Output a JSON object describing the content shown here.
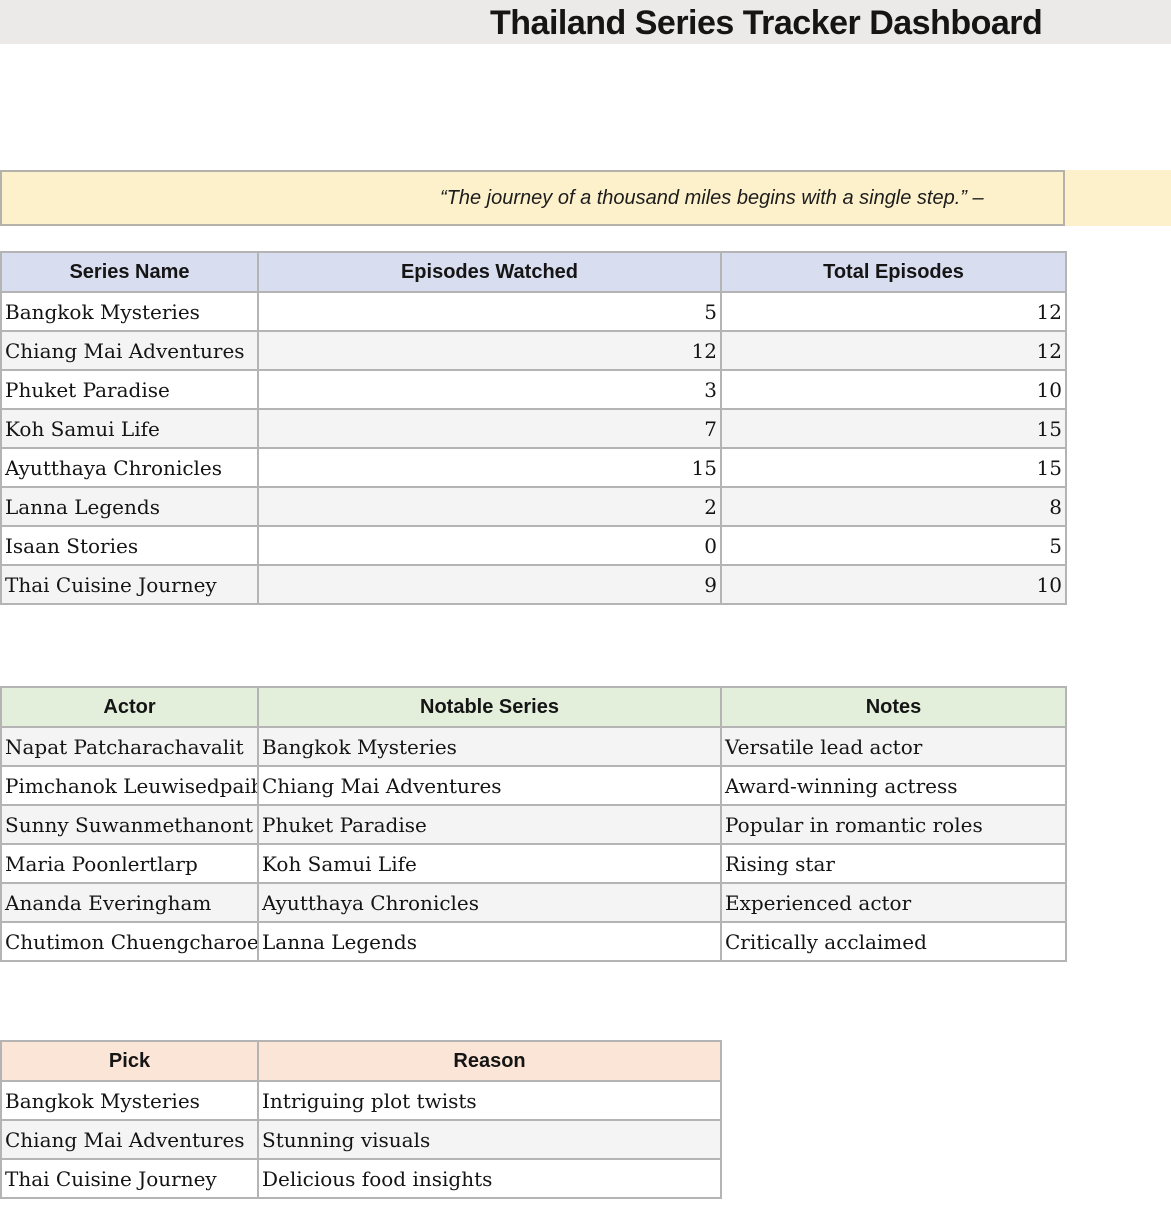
{
  "title_bar": {
    "title": "Thailand Series Tracker Dashboard"
  },
  "quote_banner": {
    "text": "“The journey of a thousand miles begins with a single step.” –"
  },
  "tables": [
    {
      "name": "series-tracker",
      "header_bg": "#D9DDF0",
      "columns": [
        "Series Name",
        "Episodes Watched",
        "Total Episodes"
      ],
      "rows": [
        [
          "Bangkok Mysteries",
          "5",
          "12"
        ],
        [
          "Chiang Mai Adventures",
          "12",
          "12"
        ],
        [
          "Phuket Paradise",
          "3",
          "10"
        ],
        [
          "Koh Samui Life",
          "7",
          "15"
        ],
        [
          "Ayutthaya Chronicles",
          "15",
          "15"
        ],
        [
          "Lanna Legends",
          "2",
          "8"
        ],
        [
          "Isaan Stories",
          "0",
          "5"
        ],
        [
          "Thai Cuisine Journey",
          "9",
          "10"
        ]
      ]
    },
    {
      "name": "actors",
      "header_bg": "#E3EFDB",
      "columns": [
        "Actor",
        "Notable Series",
        "Notes"
      ],
      "rows": [
        [
          "Napat Patcharachavalit",
          "Bangkok Mysteries",
          "Versatile lead actor"
        ],
        [
          "Pimchanok Leuwisedpaiboon",
          "Chiang Mai Adventures",
          "Award-winning actress"
        ],
        [
          "Sunny Suwanmethanont",
          "Phuket Paradise",
          "Popular in romantic roles"
        ],
        [
          "Maria Poonlertlarp",
          "Koh Samui Life",
          "Rising star"
        ],
        [
          "Ananda Everingham",
          "Ayutthaya Chronicles",
          "Experienced actor"
        ],
        [
          "Chutimon Chuengcharoensuk",
          "Lanna Legends",
          "Critically acclaimed"
        ]
      ]
    },
    {
      "name": "picks",
      "header_bg": "#FBE5D6",
      "columns": [
        "Pick",
        "Reason"
      ],
      "rows": [
        [
          "Bangkok Mysteries",
          "Intriguing plot twists"
        ],
        [
          "Chiang Mai Adventures",
          "Stunning visuals"
        ],
        [
          "Thai Cuisine Journey",
          "Delicious food insights"
        ]
      ]
    }
  ],
  "colors": {
    "title_bar_bg": "#ECEAE8",
    "quote_bg": "#FDF1CC",
    "quote_border": "#B5B2AC",
    "row_stripe": "#F4F4F4",
    "table_border": "#B4B4B4"
  }
}
